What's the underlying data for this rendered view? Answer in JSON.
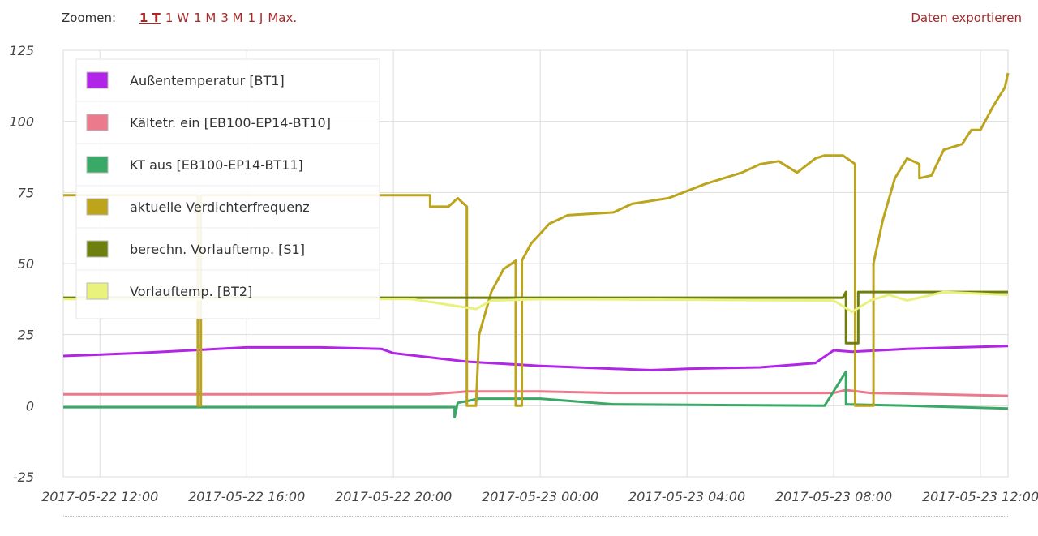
{
  "toolbar": {
    "zoom_label": "Zoomen:",
    "zoom_options": [
      "1 T",
      "1 W",
      "1 M",
      "3 M",
      "1 J",
      "Max."
    ],
    "zoom_active": 0,
    "export_label": "Daten exportieren"
  },
  "chart_data": {
    "type": "line",
    "x_range": [
      "2017-05-22 11:00",
      "2017-05-23 12:45"
    ],
    "x_ticks": [
      "2017-05-22 12:00",
      "2017-05-22 16:00",
      "2017-05-22 20:00",
      "2017-05-23 00:00",
      "2017-05-23 04:00",
      "2017-05-23 08:00",
      "2017-05-23 12:00"
    ],
    "ylim": [
      -25,
      125
    ],
    "y_ticks": [
      "125",
      "100",
      "75",
      "50",
      "25",
      "0",
      "-25"
    ],
    "grid": true,
    "legend_position": "top-left",
    "series": [
      {
        "name": "Außentemperatur [BT1]",
        "color": "#b025e8",
        "points": [
          [
            "2017-05-22 11:00",
            17.5
          ],
          [
            "2017-05-22 13:00",
            18.5
          ],
          [
            "2017-05-22 16:00",
            20.5
          ],
          [
            "2017-05-22 18:00",
            20.5
          ],
          [
            "2017-05-22 19:40",
            20
          ],
          [
            "2017-05-22 20:00",
            18.5
          ],
          [
            "2017-05-22 21:00",
            17
          ],
          [
            "2017-05-22 22:00",
            15.5
          ],
          [
            "2017-05-23 00:00",
            14
          ],
          [
            "2017-05-23 02:00",
            13
          ],
          [
            "2017-05-23 03:00",
            12.5
          ],
          [
            "2017-05-23 04:00",
            13
          ],
          [
            "2017-05-23 06:00",
            13.5
          ],
          [
            "2017-05-23 07:30",
            15
          ],
          [
            "2017-05-23 08:00",
            19.5
          ],
          [
            "2017-05-23 08:30",
            19
          ],
          [
            "2017-05-23 10:00",
            20
          ],
          [
            "2017-05-23 12:45",
            21
          ]
        ]
      },
      {
        "name": "Kältetr. ein [EB100-EP14-BT10]",
        "color": "#ea7a8c",
        "points": [
          [
            "2017-05-22 11:00",
            4
          ],
          [
            "2017-05-22 21:00",
            4
          ],
          [
            "2017-05-22 22:00",
            5
          ],
          [
            "2017-05-23 00:00",
            5
          ],
          [
            "2017-05-23 02:00",
            4.5
          ],
          [
            "2017-05-23 08:00",
            4.5
          ],
          [
            "2017-05-23 08:20",
            5.5
          ],
          [
            "2017-05-23 09:00",
            4.5
          ],
          [
            "2017-05-23 12:45",
            3.5
          ]
        ]
      },
      {
        "name": "KT aus [EB100-EP14-BT11]",
        "color": "#3aa867",
        "points": [
          [
            "2017-05-22 11:00",
            -0.5
          ],
          [
            "2017-05-22 21:40",
            -0.5
          ],
          [
            "2017-05-22 21:40",
            -4
          ],
          [
            "2017-05-22 21:45",
            1
          ],
          [
            "2017-05-22 22:20",
            2.5
          ],
          [
            "2017-05-23 00:00",
            2.5
          ],
          [
            "2017-05-23 02:00",
            0.5
          ],
          [
            "2017-05-23 07:45",
            0
          ],
          [
            "2017-05-23 08:20",
            12
          ],
          [
            "2017-05-23 08:20",
            0.5
          ],
          [
            "2017-05-23 10:00",
            0
          ],
          [
            "2017-05-23 12:45",
            -1
          ]
        ]
      },
      {
        "name": "aktuelle Verdichterfrequenz",
        "color": "#bca41c",
        "points": [
          [
            "2017-05-22 11:00",
            74
          ],
          [
            "2017-05-22 14:40",
            74
          ],
          [
            "2017-05-22 14:40",
            0
          ],
          [
            "2017-05-22 14:45",
            0
          ],
          [
            "2017-05-22 14:45",
            74
          ],
          [
            "2017-05-22 21:00",
            74
          ],
          [
            "2017-05-22 21:00",
            70
          ],
          [
            "2017-05-22 21:30",
            70
          ],
          [
            "2017-05-22 21:45",
            73
          ],
          [
            "2017-05-22 22:00",
            70
          ],
          [
            "2017-05-22 22:00",
            0
          ],
          [
            "2017-05-22 22:15",
            0
          ],
          [
            "2017-05-22 22:20",
            25
          ],
          [
            "2017-05-22 22:40",
            40
          ],
          [
            "2017-05-22 23:00",
            48
          ],
          [
            "2017-05-22 23:20",
            51
          ],
          [
            "2017-05-22 23:20",
            0
          ],
          [
            "2017-05-22 23:30",
            0
          ],
          [
            "2017-05-22 23:30",
            51
          ],
          [
            "2017-05-22 23:45",
            57
          ],
          [
            "2017-05-23 00:15",
            64
          ],
          [
            "2017-05-23 00:45",
            67
          ],
          [
            "2017-05-23 02:00",
            68
          ],
          [
            "2017-05-23 02:30",
            71
          ],
          [
            "2017-05-23 03:30",
            73
          ],
          [
            "2017-05-23 04:30",
            78
          ],
          [
            "2017-05-23 05:30",
            82
          ],
          [
            "2017-05-23 06:00",
            85
          ],
          [
            "2017-05-23 06:30",
            86
          ],
          [
            "2017-05-23 07:00",
            82
          ],
          [
            "2017-05-23 07:30",
            87
          ],
          [
            "2017-05-23 07:45",
            88
          ],
          [
            "2017-05-23 08:15",
            88
          ],
          [
            "2017-05-23 08:35",
            85
          ],
          [
            "2017-05-23 08:35",
            0
          ],
          [
            "2017-05-23 09:05",
            0
          ],
          [
            "2017-05-23 09:05",
            50
          ],
          [
            "2017-05-23 09:20",
            65
          ],
          [
            "2017-05-23 09:40",
            80
          ],
          [
            "2017-05-23 10:00",
            87
          ],
          [
            "2017-05-23 10:20",
            85
          ],
          [
            "2017-05-23 10:20",
            80
          ],
          [
            "2017-05-23 10:40",
            81
          ],
          [
            "2017-05-23 11:00",
            90
          ],
          [
            "2017-05-23 11:30",
            92
          ],
          [
            "2017-05-23 11:45",
            97
          ],
          [
            "2017-05-23 12:00",
            97
          ],
          [
            "2017-05-23 12:20",
            105
          ],
          [
            "2017-05-23 12:40",
            112
          ],
          [
            "2017-05-23 12:45",
            117
          ]
        ]
      },
      {
        "name": "berechn. Vorlauftemp. [S1]",
        "color": "#6e7f0e",
        "points": [
          [
            "2017-05-22 11:00",
            38
          ],
          [
            "2017-05-23 08:15",
            38
          ],
          [
            "2017-05-23 08:20",
            40
          ],
          [
            "2017-05-23 08:20",
            22
          ],
          [
            "2017-05-23 08:40",
            22
          ],
          [
            "2017-05-23 08:40",
            40
          ],
          [
            "2017-05-23 12:45",
            40
          ]
        ]
      },
      {
        "name": "Vorlauftemp. [BT2]",
        "color": "#e8f27c",
        "points": [
          [
            "2017-05-22 11:00",
            37.5
          ],
          [
            "2017-05-22 20:30",
            37.5
          ],
          [
            "2017-05-22 21:15",
            36
          ],
          [
            "2017-05-22 22:15",
            34
          ],
          [
            "2017-05-22 22:40",
            37
          ],
          [
            "2017-05-23 00:00",
            37.5
          ],
          [
            "2017-05-23 08:00",
            37
          ],
          [
            "2017-05-23 08:30",
            33
          ],
          [
            "2017-05-23 09:00",
            37
          ],
          [
            "2017-05-23 09:30",
            39
          ],
          [
            "2017-05-23 10:00",
            37
          ],
          [
            "2017-05-23 11:00",
            40
          ],
          [
            "2017-05-23 12:45",
            39
          ]
        ]
      }
    ]
  }
}
